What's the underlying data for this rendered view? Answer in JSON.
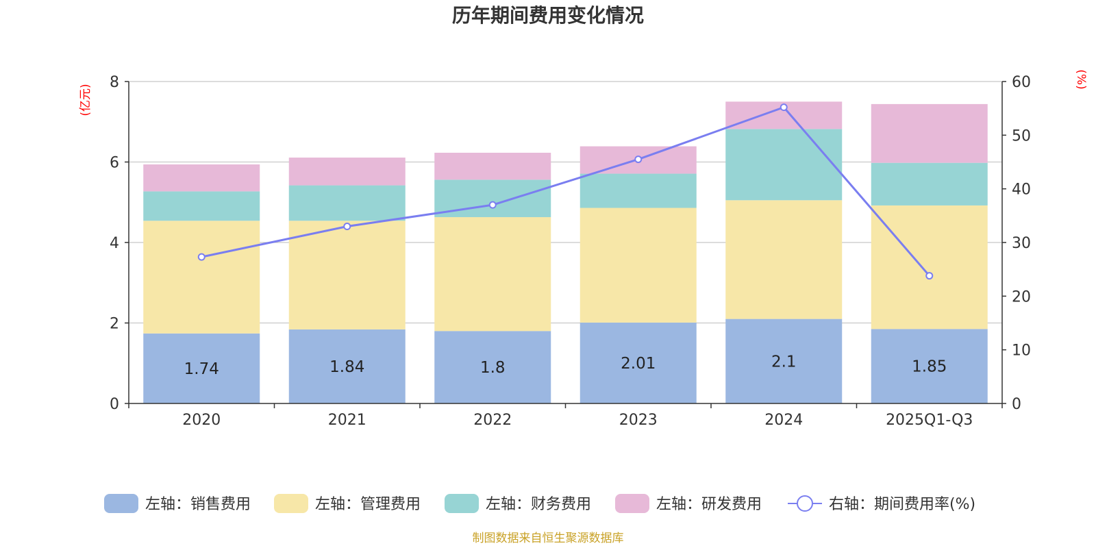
{
  "chart_data": {
    "type": "bar",
    "stacked": true,
    "title": "历年期间费用变化情况",
    "categories": [
      "2020",
      "2021",
      "2022",
      "2023",
      "2024",
      "2025Q1-Q3"
    ],
    "left_axis": {
      "unit": "(亿元)",
      "min": 0,
      "max": 8,
      "ticks": [
        0,
        2,
        4,
        6,
        8
      ]
    },
    "right_axis": {
      "unit": "(%)",
      "min": 0,
      "max": 60,
      "ticks": [
        0,
        10,
        20,
        30,
        40,
        50,
        60
      ]
    },
    "series": [
      {
        "name": "左轴：销售费用",
        "axis": "left",
        "color": "#9bb7e1",
        "values": [
          1.74,
          1.84,
          1.8,
          2.01,
          2.1,
          1.85
        ],
        "show_labels": true
      },
      {
        "name": "左轴：管理费用",
        "axis": "left",
        "color": "#f7e7a8",
        "values": [
          2.8,
          2.7,
          2.83,
          2.85,
          2.95,
          3.07
        ]
      },
      {
        "name": "左轴：财务费用",
        "axis": "left",
        "color": "#97d4d4",
        "values": [
          0.73,
          0.88,
          0.93,
          0.85,
          1.77,
          1.06
        ]
      },
      {
        "name": "左轴：研发费用",
        "axis": "left",
        "color": "#e7b9d8",
        "values": [
          0.67,
          0.69,
          0.67,
          0.68,
          0.68,
          1.46
        ]
      },
      {
        "name": "右轴：期间费用率(%)",
        "axis": "right",
        "type": "line",
        "color": "#7a7ef0",
        "values": [
          27.3,
          33.0,
          37.0,
          45.5,
          55.2,
          23.8
        ]
      }
    ],
    "legend_position": "bottom",
    "grid": true
  },
  "source": "制图数据来自恒生聚源数据库"
}
